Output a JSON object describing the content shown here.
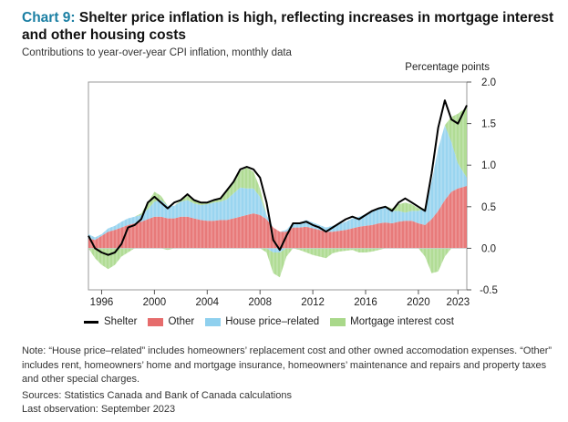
{
  "header": {
    "chart_number": "Chart 9:",
    "title": "Shelter price inflation is high, reflecting increases in mortgage interest and other housing costs",
    "subtitle": "Contributions to year-over-year CPI inflation, monthly data"
  },
  "colors": {
    "shelter": "#000000",
    "other": "#e66c6c",
    "house_price_related": "#8fd0ee",
    "mortgage_interest_cost": "#a9d88a",
    "title_accent": "#1b7fa3"
  },
  "chart_data": {
    "type": "area",
    "subtype": "stacked bars with line overlay",
    "y_axis_label": "Percentage points",
    "y_axis_position": "right",
    "ylim": [
      -0.5,
      2.0
    ],
    "y_ticks": [
      "2.0",
      "1.5",
      "1.0",
      "0.5",
      "0.0",
      "-0.5"
    ],
    "x_ticks": [
      "1996",
      "2000",
      "2004",
      "2008",
      "2012",
      "2016",
      "2020",
      "2023"
    ],
    "x_range": [
      "1995-01",
      "2023-09"
    ],
    "grid": false,
    "legend_position": "bottom",
    "x": [
      "1995-01",
      "1995-07",
      "1996-01",
      "1996-07",
      "1997-01",
      "1997-07",
      "1998-01",
      "1998-07",
      "1999-01",
      "1999-07",
      "2000-01",
      "2000-07",
      "2001-01",
      "2001-07",
      "2002-01",
      "2002-07",
      "2003-01",
      "2003-07",
      "2004-01",
      "2004-07",
      "2005-01",
      "2005-07",
      "2006-01",
      "2006-07",
      "2007-01",
      "2007-07",
      "2008-01",
      "2008-07",
      "2009-01",
      "2009-07",
      "2010-01",
      "2010-07",
      "2011-01",
      "2011-07",
      "2012-01",
      "2012-07",
      "2013-01",
      "2013-07",
      "2014-01",
      "2014-07",
      "2015-01",
      "2015-07",
      "2016-01",
      "2016-07",
      "2017-01",
      "2017-07",
      "2018-01",
      "2018-07",
      "2019-01",
      "2019-07",
      "2020-01",
      "2020-07",
      "2021-01",
      "2021-07",
      "2022-01",
      "2022-07",
      "2023-01",
      "2023-09"
    ],
    "series": [
      {
        "name": "Shelter",
        "values": [
          0.15,
          0.0,
          -0.05,
          -0.08,
          -0.05,
          0.05,
          0.25,
          0.28,
          0.35,
          0.55,
          0.62,
          0.55,
          0.48,
          0.55,
          0.58,
          0.65,
          0.58,
          0.55,
          0.55,
          0.58,
          0.6,
          0.7,
          0.8,
          0.95,
          0.98,
          0.95,
          0.85,
          0.55,
          0.1,
          -0.02,
          0.15,
          0.3,
          0.3,
          0.32,
          0.28,
          0.25,
          0.2,
          0.25,
          0.3,
          0.35,
          0.38,
          0.35,
          0.4,
          0.45,
          0.48,
          0.5,
          0.45,
          0.55,
          0.6,
          0.55,
          0.5,
          0.45,
          0.9,
          1.45,
          1.78,
          1.55,
          1.5,
          1.72
        ]
      },
      {
        "name": "Other",
        "values": [
          0.12,
          0.1,
          0.15,
          0.2,
          0.22,
          0.25,
          0.28,
          0.3,
          0.32,
          0.35,
          0.38,
          0.38,
          0.36,
          0.36,
          0.38,
          0.38,
          0.36,
          0.34,
          0.33,
          0.33,
          0.34,
          0.34,
          0.36,
          0.38,
          0.4,
          0.42,
          0.4,
          0.35,
          0.25,
          0.2,
          0.2,
          0.25,
          0.25,
          0.26,
          0.24,
          0.22,
          0.2,
          0.2,
          0.21,
          0.22,
          0.24,
          0.26,
          0.27,
          0.28,
          0.3,
          0.31,
          0.3,
          0.32,
          0.33,
          0.33,
          0.3,
          0.28,
          0.35,
          0.45,
          0.58,
          0.68,
          0.72,
          0.75
        ]
      },
      {
        "name": "House price–related",
        "values": [
          0.05,
          0.03,
          0.02,
          0.04,
          0.05,
          0.07,
          0.08,
          0.08,
          0.08,
          0.12,
          0.18,
          0.2,
          0.15,
          0.15,
          0.18,
          0.2,
          0.18,
          0.18,
          0.2,
          0.22,
          0.22,
          0.25,
          0.3,
          0.35,
          0.32,
          0.3,
          0.22,
          0.05,
          -0.05,
          -0.05,
          0.02,
          0.06,
          0.06,
          0.08,
          0.07,
          0.06,
          0.05,
          0.07,
          0.08,
          0.1,
          0.12,
          0.12,
          0.14,
          0.16,
          0.18,
          0.2,
          0.15,
          0.13,
          0.1,
          0.12,
          0.15,
          0.2,
          0.45,
          0.75,
          0.9,
          0.6,
          0.3,
          0.1
        ]
      },
      {
        "name": "Mortgage interest cost",
        "values": [
          0.0,
          -0.12,
          -0.2,
          -0.25,
          -0.2,
          -0.1,
          -0.05,
          0.0,
          0.02,
          0.08,
          0.12,
          0.05,
          -0.02,
          0.0,
          0.02,
          0.05,
          0.04,
          0.02,
          0.02,
          0.04,
          0.05,
          0.1,
          0.15,
          0.2,
          0.25,
          0.2,
          0.1,
          -0.05,
          -0.25,
          -0.3,
          -0.1,
          0.0,
          -0.02,
          -0.05,
          -0.08,
          -0.1,
          -0.12,
          -0.06,
          -0.04,
          -0.03,
          -0.02,
          -0.05,
          -0.05,
          -0.04,
          -0.02,
          0.0,
          0.03,
          0.08,
          0.12,
          0.08,
          0.03,
          -0.1,
          -0.3,
          -0.28,
          -0.1,
          0.3,
          0.6,
          0.85
        ]
      }
    ]
  },
  "legend": {
    "shelter": "Shelter",
    "other": "Other",
    "house_price_related": "House price–related",
    "mortgage_interest_cost": "Mortgage interest cost"
  },
  "notes": {
    "note": "Note: “House price–related” includes homeowners’ replacement cost and other owned accomodation expenses. “Other” includes rent, homeowners’ home and mortgage insurance, homeowners’ maintenance and repairs and property taxes and other special charges.",
    "sources": "Sources: Statistics Canada and Bank of Canada calculations",
    "last_observation": "Last observation: September 2023"
  }
}
